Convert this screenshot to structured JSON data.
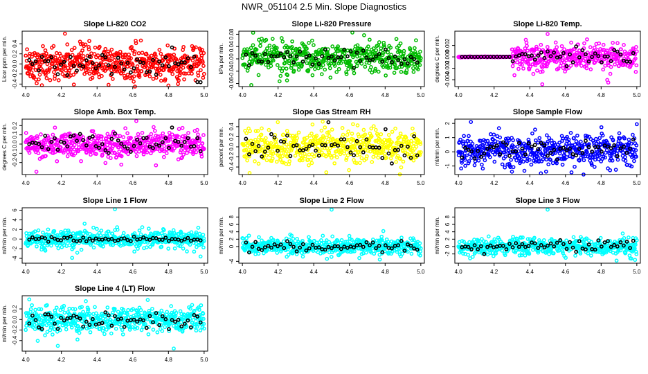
{
  "title": "NWR_051104  2.5 Min. Slope Diagnostics",
  "chart_data": [
    {
      "type": "scatter",
      "title": "Slope Li-820 CO2",
      "ylabel": "Licor ppm per min.",
      "color": "#ff0000",
      "xlim": [
        3.98,
        5.02
      ],
      "ylim": [
        -0.45,
        0.65
      ],
      "yticks": [
        -0.4,
        -0.2,
        0.0,
        0.2,
        0.4
      ],
      "yticklabels": [
        "-0.4",
        "-0.2",
        "0.0",
        "0.2",
        "0.4"
      ],
      "xticks": [
        4.0,
        4.2,
        4.4,
        4.6,
        4.8,
        5.0
      ],
      "xticklabels": [
        "4.0",
        "4.2",
        "4.4",
        "4.6",
        "4.8",
        "5.0"
      ],
      "spread": 0.17,
      "center": 0.0,
      "black_spread": 0.14,
      "outliers": [
        [
          4.22,
          0.6
        ],
        [
          4.27,
          -0.41
        ],
        [
          4.8,
          -0.43
        ]
      ]
    },
    {
      "type": "scatter",
      "title": "Slope Li-820 Pressure",
      "ylabel": "kPa per min.",
      "color": "#00bb00",
      "xlim": [
        3.98,
        5.02
      ],
      "ylim": [
        -0.09,
        0.09
      ],
      "yticks": [
        -0.08,
        -0.04,
        0.0,
        0.04,
        0.08
      ],
      "yticklabels": [
        "-0.08",
        "-0.04",
        "0.00",
        "0.04",
        "0.08"
      ],
      "xticks": [
        4.0,
        4.2,
        4.4,
        4.6,
        4.8,
        5.0
      ],
      "xticklabels": [
        "4.0",
        "4.2",
        "4.4",
        "4.6",
        "4.8",
        "5.0"
      ],
      "spread": 0.025,
      "center": 0.005,
      "black_spread": 0.015,
      "outliers": [
        [
          4.06,
          0.085
        ],
        [
          4.05,
          -0.085
        ],
        [
          4.25,
          -0.07
        ]
      ]
    },
    {
      "type": "scatter",
      "title": "Slope Li-820 Temp.",
      "ylabel": "degrees C per min.",
      "color": "#ff00ff",
      "xlim": [
        3.98,
        5.02
      ],
      "ylim": [
        -0.0052,
        0.0045
      ],
      "yticks": [
        -0.004,
        -0.002,
        0.0,
        0.002
      ],
      "yticklabels": [
        "-0.004",
        "-0.002",
        "0.000",
        "0.002"
      ],
      "xticks": [
        4.0,
        4.2,
        4.4,
        4.6,
        4.8,
        5.0
      ],
      "xticklabels": [
        "4.0",
        "4.2",
        "4.4",
        "4.6",
        "4.8",
        "5.0"
      ],
      "spread": 0.0012,
      "center": 0.0,
      "black_spread": 0.0006,
      "flat_until": 4.3,
      "outliers": [
        [
          4.5,
          0.004
        ],
        [
          4.47,
          -0.0048
        ],
        [
          4.84,
          -0.0045
        ]
      ]
    },
    {
      "type": "scatter",
      "title": "Slope Amb. Box Temp.",
      "ylabel": "degrees C per min.",
      "color": "#ff00ff",
      "xlim": [
        3.98,
        5.02
      ],
      "ylim": [
        -0.33,
        0.27
      ],
      "yticks": [
        -0.2,
        -0.1,
        0.0,
        0.1,
        0.2
      ],
      "yticklabels": [
        "-0.2",
        "-0.1",
        "0.0",
        "0.1",
        "0.2"
      ],
      "xticks": [
        4.0,
        4.2,
        4.4,
        4.6,
        4.8,
        5.0
      ],
      "xticklabels": [
        "4.0",
        "4.2",
        "4.4",
        "4.6",
        "4.8",
        "5.0"
      ],
      "spread": 0.07,
      "center": 0.0,
      "black_spread": 0.06,
      "outliers": [
        [
          4.06,
          -0.3
        ],
        [
          4.62,
          0.25
        ],
        [
          4.73,
          -0.23
        ]
      ]
    },
    {
      "type": "scatter",
      "title": "Slope Gas Stream RH",
      "ylabel": "percent per min.",
      "color": "#ffff00",
      "xlim": [
        3.98,
        5.02
      ],
      "ylim": [
        -0.55,
        0.55
      ],
      "yticks": [
        -0.4,
        -0.2,
        0.0,
        0.2,
        0.4
      ],
      "yticklabels": [
        "-0.4",
        "-0.2",
        "0.0",
        "0.2",
        "0.4"
      ],
      "xticks": [
        4.0,
        4.2,
        4.4,
        4.6,
        4.8,
        5.0
      ],
      "xticklabels": [
        "4.0",
        "4.2",
        "4.4",
        "4.6",
        "4.8",
        "5.0"
      ],
      "spread": 0.17,
      "center": 0.0,
      "black_spread": 0.15,
      "outliers": [
        [
          4.04,
          -0.52
        ],
        [
          4.45,
          0.5
        ],
        [
          4.62,
          0.45
        ]
      ]
    },
    {
      "type": "scatter",
      "title": "Slope Sample Flow",
      "ylabel": "ml/min per min.",
      "color": "#0000ff",
      "xlim": [
        3.98,
        5.02
      ],
      "ylim": [
        -1.6,
        2.3
      ],
      "yticks": [
        -1,
        0,
        1,
        2
      ],
      "yticklabels": [
        "-1",
        "0",
        "1",
        "2"
      ],
      "xticks": [
        4.0,
        4.2,
        4.4,
        4.6,
        4.8,
        5.0
      ],
      "xticklabels": [
        "4.0",
        "4.2",
        "4.4",
        "4.6",
        "4.8",
        "5.0"
      ],
      "spread": 0.55,
      "center": 0.1,
      "black_spread": 0.35,
      "outliers": [
        [
          4.07,
          2.1
        ],
        [
          4.3,
          -1.4
        ],
        [
          4.85,
          -1.3
        ]
      ]
    },
    {
      "type": "scatter",
      "title": "Slope Line 1 Flow",
      "ylabel": "ml/min per min.",
      "color": "#00ffff",
      "xlim": [
        3.98,
        5.02
      ],
      "ylim": [
        -5,
        6.5
      ],
      "yticks": [
        -4,
        -2,
        0,
        2,
        4,
        6
      ],
      "yticklabels": [
        "-4",
        "-2",
        "0",
        "2",
        "4",
        "6"
      ],
      "xticks": [
        4.0,
        4.2,
        4.4,
        4.6,
        4.8,
        5.0
      ],
      "xticklabels": [
        "4.0",
        "4.2",
        "4.4",
        "4.6",
        "4.8",
        "5.0"
      ],
      "spread": 0.9,
      "center": 0.0,
      "black_spread": 0.3,
      "outliers": [
        [
          4.5,
          6.2
        ],
        [
          4.33,
          3.2
        ],
        [
          4.98,
          -3.6
        ],
        [
          4.26,
          -3.9
        ]
      ]
    },
    {
      "type": "scatter",
      "title": "Slope Line 2 Flow",
      "ylabel": "ml/min per min.",
      "color": "#00ffff",
      "xlim": [
        3.98,
        5.02
      ],
      "ylim": [
        -4.5,
        10.5
      ],
      "yticks": [
        -4,
        0,
        2,
        4,
        6,
        8
      ],
      "yticklabels": [
        "-4",
        "0",
        "2",
        "4",
        "6",
        "8"
      ],
      "xticks": [
        4.0,
        4.2,
        4.4,
        4.6,
        4.8,
        5.0
      ],
      "xticklabels": [
        "4.0",
        "4.2",
        "4.4",
        "4.6",
        "4.8",
        "5.0"
      ],
      "spread": 1.1,
      "center": 0.0,
      "black_spread": 0.7,
      "outliers": [
        [
          4.5,
          10
        ],
        [
          4.79,
          4.2
        ],
        [
          4.77,
          -3.5
        ]
      ]
    },
    {
      "type": "scatter",
      "title": "Slope Line 3 Flow",
      "ylabel": "ml/min per min.",
      "color": "#00ffff",
      "xlim": [
        3.98,
        5.02
      ],
      "ylim": [
        -4.5,
        10.5
      ],
      "yticks": [
        -2,
        0,
        2,
        4,
        6,
        8
      ],
      "yticklabels": [
        "-2",
        "0",
        "2",
        "4",
        "6",
        "8"
      ],
      "xticks": [
        4.0,
        4.2,
        4.4,
        4.6,
        4.8,
        5.0
      ],
      "xticklabels": [
        "4.0",
        "4.2",
        "4.4",
        "4.6",
        "4.8",
        "5.0"
      ],
      "spread": 1.1,
      "center": 0.0,
      "black_spread": 0.8,
      "outliers": [
        [
          4.5,
          10
        ],
        [
          4.99,
          -3.6
        ],
        [
          4.08,
          -2.8
        ]
      ]
    },
    {
      "type": "scatter",
      "title": "Slope Line 4 (LT) Flow",
      "ylabel": "ml/min per min.",
      "color": "#00ffff",
      "xlim": [
        3.98,
        5.02
      ],
      "ylim": [
        -0.6,
        0.45
      ],
      "yticks": [
        -0.4,
        -0.2,
        0.0,
        0.2
      ],
      "yticklabels": [
        "-0.4",
        "-0.2",
        "0.0",
        "0.2"
      ],
      "xticks": [
        4.0,
        4.2,
        4.4,
        4.6,
        4.8,
        5.0
      ],
      "xticklabels": [
        "4.0",
        "4.2",
        "4.4",
        "4.6",
        "4.8",
        "5.0"
      ],
      "spread": 0.12,
      "center": 0.0,
      "black_spread": 0.09,
      "outliers": [
        [
          4.02,
          0.38
        ],
        [
          4.29,
          -0.38
        ],
        [
          4.83,
          -0.55
        ],
        [
          4.18,
          -0.5
        ]
      ]
    }
  ]
}
